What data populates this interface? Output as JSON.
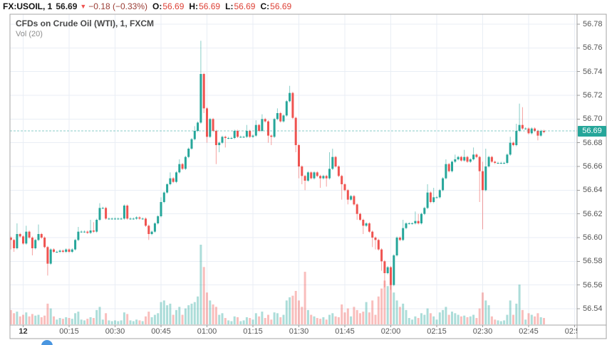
{
  "header": {
    "symbol_interval": "FX:USOIL, 1",
    "last_price": "56.69",
    "direction_icon": "down-triangle",
    "change": "−0.18 (−0.33%)",
    "o_label": "O:",
    "o_value": "56.69",
    "h_label": "H:",
    "h_value": "56.69",
    "l_label": "L:",
    "l_value": "56.69",
    "c_label": "C:",
    "c_value": "56.69"
  },
  "legend": {
    "title": "CFDs on Crude Oil (WTI), 1, FXCM",
    "volume_label": "Vol (20)"
  },
  "price_axis": {
    "ticks": [
      "56.78",
      "56.76",
      "56.74",
      "56.72",
      "56.70",
      "56.68",
      "56.66",
      "56.64",
      "56.62",
      "56.60",
      "56.58",
      "56.56",
      "56.54"
    ],
    "last_price_label": "56.69"
  },
  "time_axis": {
    "labels": [
      "12",
      "00:15",
      "00:30",
      "00:45",
      "01:00",
      "01:15",
      "01:30",
      "01:45",
      "02:00",
      "02:15",
      "02:30",
      "02:45",
      "02:55"
    ],
    "day_label_index": 0
  },
  "colors": {
    "up": "#26a69a",
    "down": "#ef5350",
    "vol_up": "rgba(38,166,154,0.38)",
    "vol_down": "rgba(239,83,80,0.38)",
    "last_price_bg": "#26a69a",
    "grid": "#e9eef5",
    "border": "#a6a6a6",
    "tick": "#999999",
    "value_red": "#dd4136",
    "change_red": "#993b33",
    "logo_blue": "#4a96e0"
  },
  "chart_data": {
    "type": "candlestick+volume",
    "title": "CFDs on Crude Oil (WTI), 1, FXCM",
    "symbol": "FX:USOIL",
    "interval_minutes": 1,
    "exchange": "FXCM",
    "price_range": [
      56.54,
      56.78
    ],
    "price_grid_step": 0.02,
    "time_start": "23:56",
    "time_end": "02:50",
    "time_grid_step_minutes": 15,
    "current_price": 56.69,
    "volume_ma_period": 20,
    "open_equals_previous_close": true,
    "first_open": 56.6,
    "candle_format": "[close, relative_volume_0_100, high_or_0_auto, low_or_0_auto]",
    "candles": [
      [
        56.598,
        18,
        0,
        56.59
      ],
      [
        56.591,
        14,
        0,
        56.588
      ],
      [
        56.603,
        16,
        56.612,
        0
      ],
      [
        56.601,
        10,
        0,
        0
      ],
      [
        56.595,
        12,
        0,
        0
      ],
      [
        56.605,
        15,
        56.61,
        0
      ],
      [
        56.6,
        10,
        0,
        0
      ],
      [
        56.591,
        13,
        0,
        56.585
      ],
      [
        56.598,
        11,
        0,
        0
      ],
      [
        56.603,
        12,
        56.611,
        0
      ],
      [
        56.6,
        9,
        0,
        0
      ],
      [
        56.592,
        11,
        0,
        0
      ],
      [
        56.578,
        26,
        0,
        56.568
      ],
      [
        56.59,
        20,
        0,
        0
      ],
      [
        56.588,
        10,
        0,
        0
      ],
      [
        56.588,
        6,
        0,
        0
      ],
      [
        56.589,
        8,
        0,
        0
      ],
      [
        56.588,
        7,
        0,
        0
      ],
      [
        56.59,
        9,
        0,
        0
      ],
      [
        56.588,
        8,
        0,
        0
      ],
      [
        56.59,
        7,
        0,
        0
      ],
      [
        56.598,
        14,
        0,
        0
      ],
      [
        56.605,
        16,
        56.609,
        0
      ],
      [
        56.605,
        6,
        0,
        0
      ],
      [
        56.605,
        5,
        0,
        0
      ],
      [
        56.604,
        7,
        0,
        0
      ],
      [
        56.606,
        9,
        56.615,
        0
      ],
      [
        56.605,
        8,
        56.613,
        0
      ],
      [
        56.615,
        18,
        0,
        0
      ],
      [
        56.625,
        22,
        56.629,
        0
      ],
      [
        56.625,
        6,
        0,
        0
      ],
      [
        56.616,
        14,
        0,
        0
      ],
      [
        56.616,
        5,
        0,
        0
      ],
      [
        56.616,
        4,
        0,
        0
      ],
      [
        56.616,
        5,
        0,
        0
      ],
      [
        56.616,
        4,
        0,
        0
      ],
      [
        56.616,
        5,
        0,
        0
      ],
      [
        56.627,
        15,
        0,
        0
      ],
      [
        56.616,
        13,
        0,
        0
      ],
      [
        56.616,
        5,
        0,
        0
      ],
      [
        56.616,
        4,
        0,
        0
      ],
      [
        56.617,
        6,
        0,
        0
      ],
      [
        56.616,
        5,
        0,
        0
      ],
      [
        56.616,
        4,
        0,
        0
      ],
      [
        56.61,
        10,
        0,
        0
      ],
      [
        56.603,
        16,
        0,
        56.598
      ],
      [
        56.605,
        9,
        0,
        0
      ],
      [
        56.612,
        12,
        0,
        0
      ],
      [
        56.618,
        14,
        0,
        0
      ],
      [
        56.63,
        28,
        56.634,
        0
      ],
      [
        56.638,
        30,
        0,
        0
      ],
      [
        56.645,
        24,
        0,
        0
      ],
      [
        56.65,
        26,
        56.655,
        0
      ],
      [
        56.647,
        12,
        0,
        0
      ],
      [
        56.655,
        18,
        0,
        0
      ],
      [
        56.662,
        22,
        56.666,
        0
      ],
      [
        56.658,
        12,
        0,
        0
      ],
      [
        56.668,
        20,
        0,
        0
      ],
      [
        56.675,
        24,
        0,
        0
      ],
      [
        56.683,
        26,
        0,
        0
      ],
      [
        56.69,
        28,
        56.694,
        0
      ],
      [
        56.697,
        35,
        0,
        0
      ],
      [
        56.738,
        100,
        56.766,
        0
      ],
      [
        56.709,
        72,
        0,
        56.705
      ],
      [
        56.685,
        40,
        0,
        56.68
      ],
      [
        56.7,
        30,
        0,
        0
      ],
      [
        56.69,
        25,
        0,
        0
      ],
      [
        56.678,
        22,
        0,
        56.662
      ],
      [
        56.68,
        12,
        0,
        56.672
      ],
      [
        56.685,
        14,
        0,
        0
      ],
      [
        56.684,
        8,
        0,
        56.676
      ],
      [
        56.684,
        5,
        0,
        0
      ],
      [
        56.684,
        4,
        0,
        0
      ],
      [
        56.69,
        10,
        0,
        0
      ],
      [
        56.685,
        9,
        0,
        0
      ],
      [
        56.685,
        4,
        0,
        0
      ],
      [
        56.685,
        5,
        0,
        0
      ],
      [
        56.69,
        9,
        56.695,
        0
      ],
      [
        56.685,
        8,
        0,
        0
      ],
      [
        56.686,
        6,
        0,
        0
      ],
      [
        56.695,
        14,
        56.699,
        0
      ],
      [
        56.69,
        10,
        0,
        0
      ],
      [
        56.7,
        16,
        56.704,
        0
      ],
      [
        56.698,
        8,
        0,
        0
      ],
      [
        56.686,
        12,
        0,
        56.68
      ],
      [
        56.685,
        6,
        0,
        56.678
      ],
      [
        56.7,
        15,
        0,
        0
      ],
      [
        56.705,
        14,
        56.709,
        0
      ],
      [
        56.698,
        9,
        0,
        0
      ],
      [
        56.703,
        12,
        0,
        0
      ],
      [
        56.715,
        30,
        0,
        0
      ],
      [
        56.722,
        34,
        56.728,
        0
      ],
      [
        56.701,
        36,
        0,
        0
      ],
      [
        56.678,
        42,
        0,
        56.672
      ],
      [
        56.66,
        30,
        0,
        56.65
      ],
      [
        56.652,
        22,
        0,
        56.645
      ],
      [
        56.648,
        66,
        0,
        56.64
      ],
      [
        56.655,
        18,
        0,
        0
      ],
      [
        56.65,
        12,
        0,
        0
      ],
      [
        56.655,
        10,
        0,
        0
      ],
      [
        56.652,
        8,
        0,
        0
      ],
      [
        56.65,
        7,
        0,
        56.642
      ],
      [
        56.652,
        9,
        0,
        0
      ],
      [
        56.65,
        6,
        0,
        56.643
      ],
      [
        56.658,
        12,
        56.672,
        0
      ],
      [
        56.668,
        14,
        56.675,
        0
      ],
      [
        56.66,
        10,
        0,
        0
      ],
      [
        56.652,
        9,
        0,
        0
      ],
      [
        56.645,
        25,
        0,
        56.632
      ],
      [
        56.64,
        15,
        0,
        0
      ],
      [
        56.632,
        20,
        0,
        56.628
      ],
      [
        56.635,
        10,
        0,
        0
      ],
      [
        56.628,
        22,
        0,
        0
      ],
      [
        56.62,
        18,
        0,
        56.615
      ],
      [
        56.615,
        14,
        0,
        0
      ],
      [
        56.61,
        16,
        0,
        56.603
      ],
      [
        56.612,
        28,
        0,
        0
      ],
      [
        56.605,
        15,
        0,
        0
      ],
      [
        56.6,
        30,
        0,
        56.592
      ],
      [
        56.598,
        12,
        0,
        56.59
      ],
      [
        56.59,
        35,
        0,
        0
      ],
      [
        56.58,
        45,
        0,
        56.572
      ],
      [
        56.57,
        55,
        0,
        56.558
      ],
      [
        56.575,
        48,
        0,
        0
      ],
      [
        56.56,
        62,
        0,
        56.556
      ],
      [
        56.585,
        40,
        0,
        0
      ],
      [
        56.6,
        30,
        0,
        0
      ],
      [
        56.598,
        22,
        0,
        0
      ],
      [
        56.608,
        26,
        56.615,
        0
      ],
      [
        56.612,
        18,
        0,
        0
      ],
      [
        56.612,
        8,
        0,
        0
      ],
      [
        56.612,
        6,
        0,
        0
      ],
      [
        56.614,
        10,
        56.622,
        0
      ],
      [
        56.612,
        8,
        56.62,
        0
      ],
      [
        56.62,
        14,
        0,
        0
      ],
      [
        56.625,
        12,
        0,
        0
      ],
      [
        56.638,
        20,
        56.645,
        0
      ],
      [
        56.63,
        14,
        0,
        0
      ],
      [
        56.634,
        10,
        56.642,
        0
      ],
      [
        56.634,
        6,
        0,
        0
      ],
      [
        56.64,
        15,
        0,
        0
      ],
      [
        56.65,
        18,
        0,
        0
      ],
      [
        56.662,
        22,
        56.666,
        0
      ],
      [
        56.656,
        12,
        0,
        0
      ],
      [
        56.664,
        16,
        0,
        0
      ],
      [
        56.666,
        14,
        56.67,
        0
      ],
      [
        56.668,
        12,
        0,
        0
      ],
      [
        56.665,
        10,
        0,
        0
      ],
      [
        56.668,
        11,
        56.674,
        0
      ],
      [
        56.664,
        9,
        0,
        0
      ],
      [
        56.666,
        10,
        0,
        0
      ],
      [
        56.67,
        12,
        56.676,
        0
      ],
      [
        56.668,
        8,
        0,
        0
      ],
      [
        56.656,
        20,
        0,
        56.63
      ],
      [
        56.64,
        40,
        56.664,
        56.607
      ],
      [
        56.66,
        30,
        56.675,
        0
      ],
      [
        56.668,
        24,
        0,
        0
      ],
      [
        56.664,
        10,
        0,
        0
      ],
      [
        56.663,
        6,
        0,
        0
      ],
      [
        56.663,
        5,
        0,
        0
      ],
      [
        56.663,
        4,
        0,
        0
      ],
      [
        56.663,
        5,
        0,
        0
      ],
      [
        56.67,
        12,
        0,
        0
      ],
      [
        56.68,
        30,
        56.685,
        0
      ],
      [
        56.678,
        12,
        0,
        0
      ],
      [
        56.69,
        26,
        56.696,
        0
      ],
      [
        56.695,
        50,
        56.713,
        0
      ],
      [
        56.692,
        18,
        56.71,
        0
      ],
      [
        56.692,
        6,
        0,
        0
      ],
      [
        56.688,
        14,
        0,
        0
      ],
      [
        56.692,
        12,
        0,
        0
      ],
      [
        56.69,
        10,
        0,
        0
      ],
      [
        56.686,
        14,
        0,
        56.682
      ],
      [
        56.69,
        9,
        0,
        0
      ],
      [
        56.689,
        8,
        0,
        0
      ]
    ]
  }
}
